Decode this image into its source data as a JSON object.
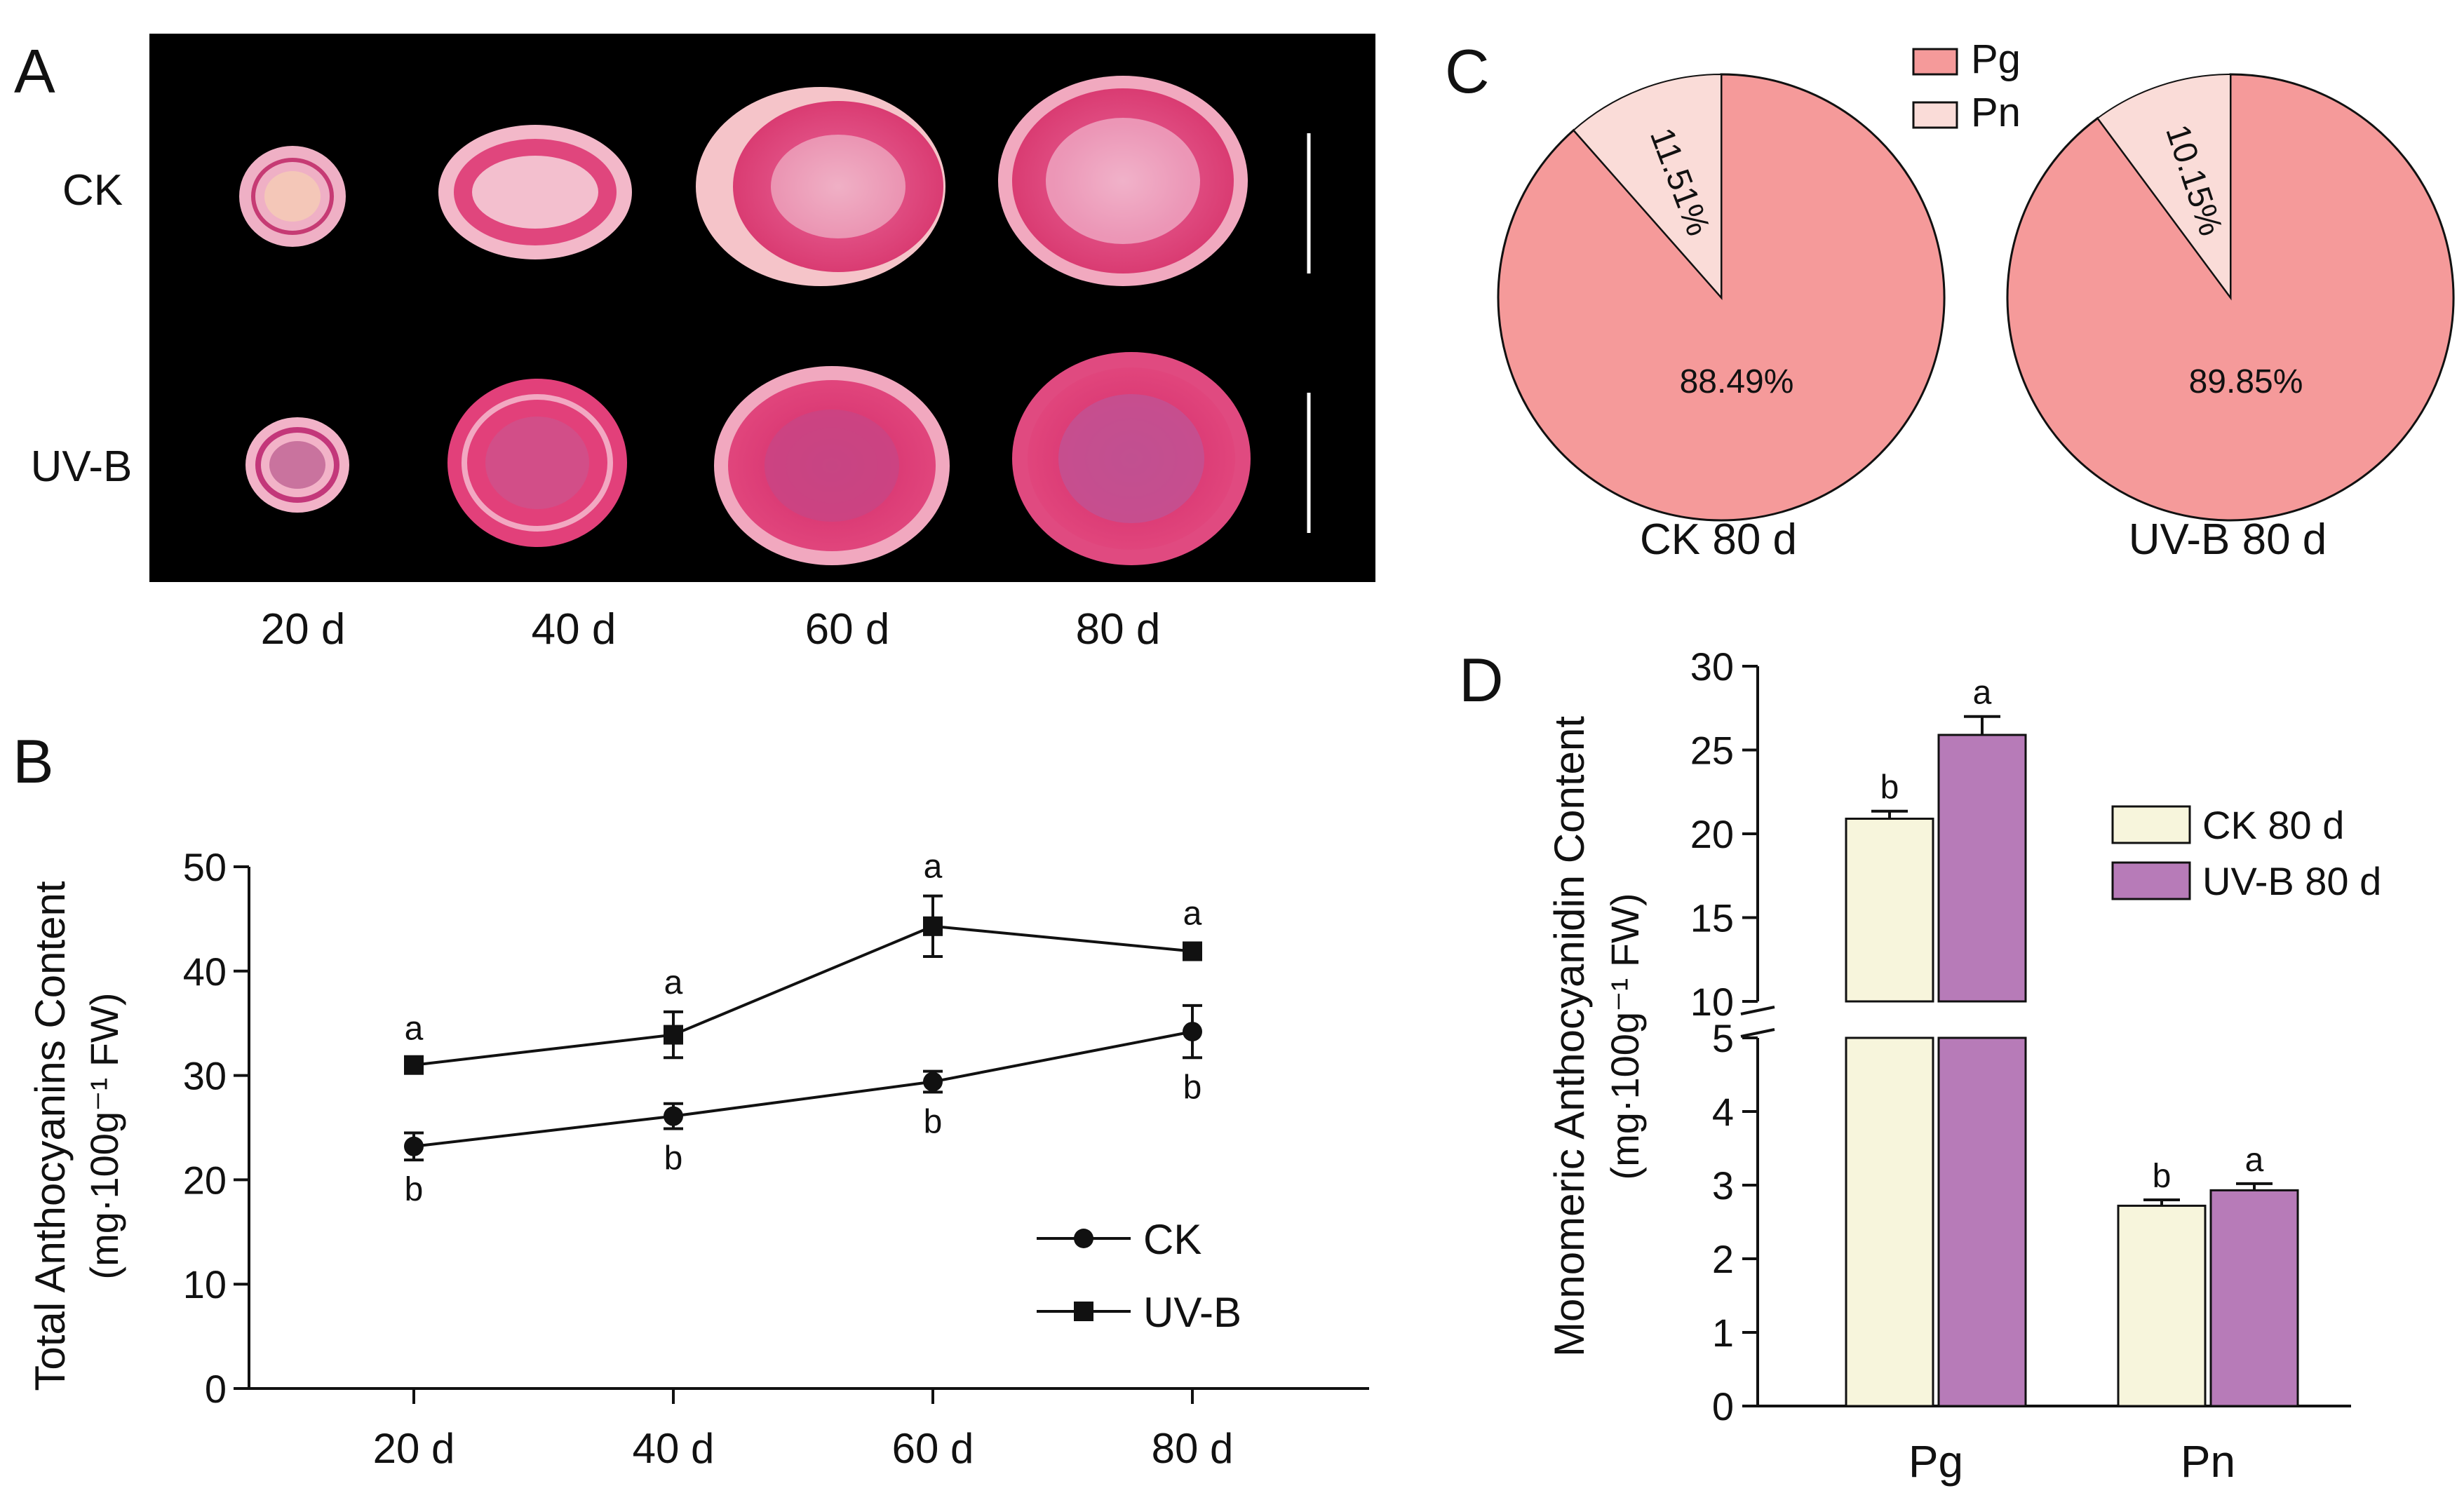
{
  "panels": {
    "A": {
      "label": "A",
      "row_labels": [
        "CK",
        "UV-B"
      ],
      "col_labels": [
        "20 d",
        "40 d",
        "60 d",
        "80 d"
      ]
    },
    "B": {
      "label": "B"
    },
    "C": {
      "label": "C"
    },
    "D": {
      "label": "D"
    }
  },
  "colors": {
    "pg": "#f59a9a",
    "pn": "#fadcd8",
    "ck_bar": "#f7f5dc",
    "uvb_bar": "#b77bb8",
    "photo_bg": "#000000",
    "slice_flesh": "#e2477c",
    "slice_light": "#f6b9cc"
  },
  "chart_data": [
    {
      "panel": "B",
      "type": "line",
      "title": "",
      "xlabel": "",
      "ylabel": "Total Anthocyanins Content",
      "ylabel_unit": "(mg·100g⁻¹ FW)",
      "ylim": [
        0,
        50
      ],
      "yticks": [
        "0",
        "10",
        "20",
        "30",
        "40",
        "50"
      ],
      "categories": [
        "20 d",
        "40 d",
        "60 d",
        "80 d"
      ],
      "legend_position": "bottom-right",
      "grid": false,
      "series": [
        {
          "name": "CK",
          "marker": "circle",
          "values": [
            23.2,
            26.1,
            29.4,
            34.2
          ],
          "errors": [
            1.3,
            1.2,
            1.0,
            2.5
          ],
          "letters": [
            "b",
            "b",
            "b",
            "b"
          ],
          "letter_side": "below"
        },
        {
          "name": "UV-B",
          "marker": "square",
          "values": [
            31.0,
            33.9,
            44.3,
            41.9
          ],
          "errors": [
            0.7,
            2.2,
            2.9,
            0.8
          ],
          "letters": [
            "a",
            "a",
            "a",
            "a"
          ],
          "letter_side": "above"
        }
      ]
    },
    {
      "panel": "C",
      "type": "pie",
      "legend": [
        "Pg",
        "Pn"
      ],
      "legend_position": "top-center",
      "pies": [
        {
          "caption": "CK 80 d",
          "slices": [
            {
              "name": "Pg",
              "value": 88.49,
              "label": "88.49%"
            },
            {
              "name": "Pn",
              "value": 11.51,
              "label": "11.51%"
            }
          ]
        },
        {
          "caption": "UV-B 80 d",
          "slices": [
            {
              "name": "Pg",
              "value": 89.85,
              "label": "89.85%"
            },
            {
              "name": "Pn",
              "value": 10.15,
              "label": "10.15%"
            }
          ]
        }
      ]
    },
    {
      "panel": "D",
      "type": "bar",
      "ylabel": "Monomeric Anthocyanidin Content",
      "ylabel_unit": "(mg·100g⁻¹ FW)",
      "categories": [
        "Pg",
        "Pn"
      ],
      "axis_break": true,
      "ylim_lower": [
        0,
        5
      ],
      "ylim_upper": [
        10,
        30
      ],
      "yticks_lower": [
        "0",
        "1",
        "2",
        "3",
        "4",
        "5"
      ],
      "yticks_upper": [
        "10",
        "15",
        "20",
        "25",
        "30"
      ],
      "legend_position": "right",
      "grid": false,
      "series": [
        {
          "name": "CK 80 d",
          "values": [
            20.9,
            2.72
          ],
          "errors": [
            0.45,
            0.08
          ],
          "letters": [
            "b",
            "b"
          ]
        },
        {
          "name": "UV-B 80 d",
          "values": [
            25.9,
            2.93
          ],
          "errors": [
            1.1,
            0.09
          ],
          "letters": [
            "a",
            "a"
          ]
        }
      ]
    }
  ]
}
